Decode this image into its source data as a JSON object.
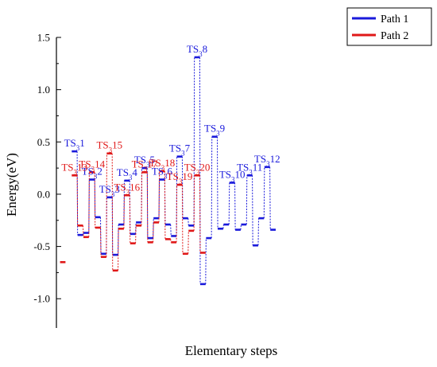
{
  "chart_data": {
    "type": "line",
    "xlabel": "Elementary steps",
    "ylabel": "Energy(eV)",
    "ylim": [
      -1.28,
      1.5
    ],
    "yticks": [
      "1.5",
      "1.0",
      "0.5",
      "0.0",
      "-0.5",
      "-1.0"
    ],
    "ytick_values": [
      1.5,
      1.0,
      0.5,
      0.0,
      -0.5,
      -1.0
    ],
    "grid": false,
    "legend_position": "top-right",
    "x": [
      0,
      1,
      2,
      3,
      4,
      5,
      6,
      7,
      8,
      9,
      10,
      11,
      12,
      13,
      14,
      15,
      16,
      17,
      18,
      19,
      20,
      21,
      22,
      23,
      24,
      25,
      26,
      27,
      28,
      29,
      30,
      31,
      32,
      33,
      34,
      35,
      36,
      37,
      38,
      39,
      40,
      41,
      42,
      43,
      44,
      45,
      46,
      47,
      48,
      49,
      50,
      51,
      52,
      53,
      54,
      55,
      56,
      57,
      58,
      59,
      60,
      61
    ],
    "series": [
      {
        "name": "Path 1",
        "color": "#1a1adb",
        "values": [
          null,
          null,
          0.41,
          -0.39,
          -0.37,
          0.14,
          -0.22,
          -0.57,
          -0.03,
          -0.58,
          -0.29,
          0.13,
          -0.38,
          -0.27,
          0.25,
          -0.42,
          -0.23,
          0.14,
          -0.29,
          -0.4,
          0.36,
          -0.23,
          -0.3,
          1.31,
          -0.86,
          -0.42,
          0.55,
          -0.33,
          -0.29,
          0.11,
          -0.34,
          -0.29,
          0.18,
          -0.49,
          -0.23,
          0.26,
          -0.34,
          null,
          null,
          null,
          null,
          null,
          null,
          null,
          null,
          null,
          null,
          null,
          null,
          null,
          null,
          null,
          null,
          null,
          null,
          null,
          null,
          null,
          null,
          null,
          null,
          null
        ],
        "labels": [
          {
            "index": 2,
            "text": "TS",
            "sub": "3",
            "num": "1"
          },
          {
            "index": 5,
            "text": "TS",
            "sub": "3",
            "num": "2"
          },
          {
            "index": 8,
            "text": "TS",
            "sub": "3",
            "num": "3"
          },
          {
            "index": 11,
            "text": "TS",
            "sub": "3",
            "num": "4"
          },
          {
            "index": 14,
            "text": "TS",
            "sub": "3",
            "num": "5"
          },
          {
            "index": 17,
            "text": "TS",
            "sub": "3",
            "num": "6"
          },
          {
            "index": 20,
            "text": "TS",
            "sub": "3",
            "num": "7"
          },
          {
            "index": 23,
            "text": "TS",
            "sub": "3",
            "num": "8"
          },
          {
            "index": 26,
            "text": "TS",
            "sub": "3",
            "num": "9"
          },
          {
            "index": 29,
            "text": "TS",
            "sub": "3",
            "num": "10"
          },
          {
            "index": 32,
            "text": "TS",
            "sub": "3",
            "num": "11"
          },
          {
            "index": 35,
            "text": "TS",
            "sub": "3",
            "num": "12"
          }
        ]
      },
      {
        "name": "Path 2",
        "color": "#e01818",
        "values": [
          -0.65,
          null,
          0.18,
          -0.3,
          -0.41,
          0.21,
          -0.32,
          -0.6,
          0.39,
          -0.73,
          -0.33,
          -0.01,
          -0.47,
          -0.3,
          0.21,
          -0.46,
          -0.27,
          0.22,
          -0.43,
          -0.46,
          0.09,
          -0.57,
          -0.35,
          0.18,
          -0.56,
          null,
          null,
          null,
          null,
          null,
          null,
          null,
          null,
          null,
          null,
          null,
          null,
          null,
          null,
          null,
          null,
          null,
          null,
          null,
          null,
          null,
          null,
          null,
          null,
          null,
          null,
          null,
          null,
          null,
          null,
          null,
          null,
          null,
          null,
          null,
          null,
          null
        ],
        "labels": [
          {
            "index": 2,
            "text": "TS",
            "sub": "3",
            "num": "13"
          },
          {
            "index": 5,
            "text": "TS",
            "sub": "3",
            "num": "14"
          },
          {
            "index": 8,
            "text": "TS",
            "sub": "3",
            "num": "15"
          },
          {
            "index": 11,
            "text": "TS",
            "sub": "3",
            "num": "16"
          },
          {
            "index": 14,
            "text": "TS",
            "sub": "3",
            "num": "17"
          },
          {
            "index": 17,
            "text": "TS",
            "sub": "3",
            "num": "18"
          },
          {
            "index": 20,
            "text": "TS",
            "sub": "3",
            "num": "19"
          },
          {
            "index": 23,
            "text": "TS",
            "sub": "3",
            "num": "20"
          }
        ]
      }
    ]
  }
}
